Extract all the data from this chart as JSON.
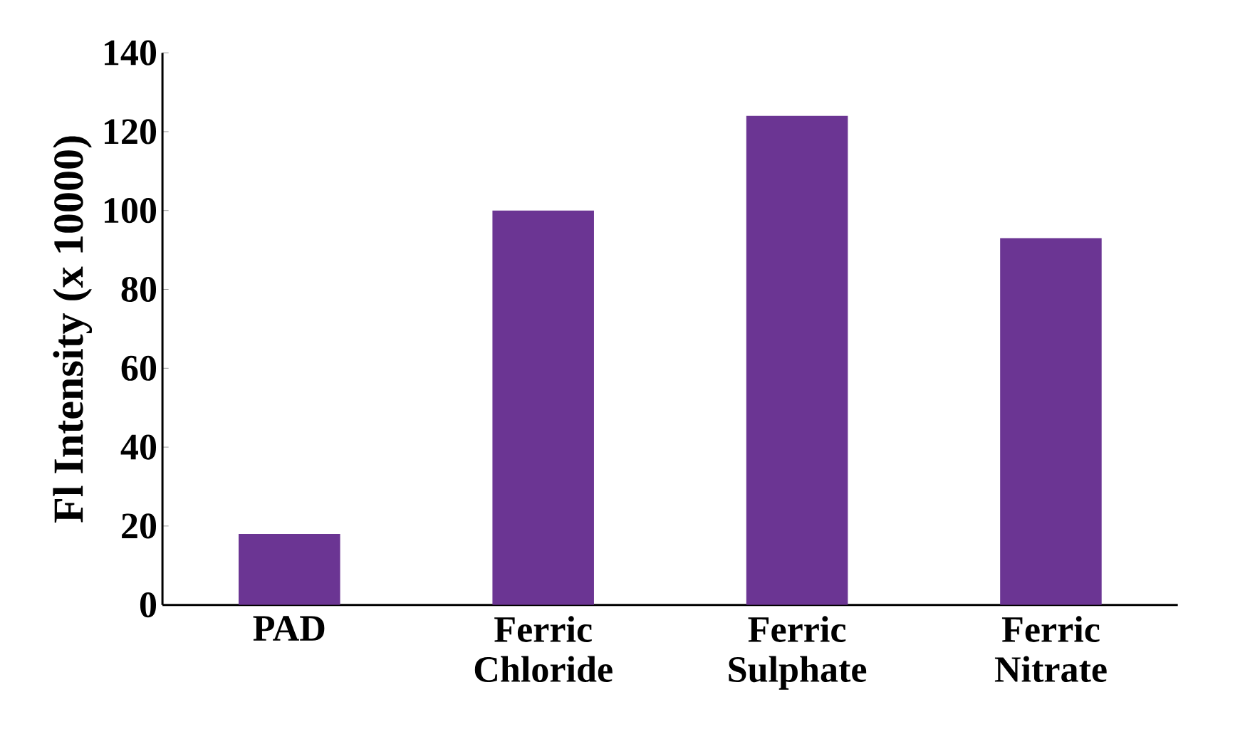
{
  "chart_data": {
    "type": "bar",
    "ylabel": "Fl Intensity (x 10000)",
    "categories": [
      "PAD",
      "Ferric Chloride",
      "Ferric Sulphate",
      "Ferric Nitrate"
    ],
    "values": [
      18,
      100,
      124,
      93
    ],
    "color": "#6b3593",
    "ylim": [
      0,
      140
    ],
    "yticks": [
      0,
      20,
      40,
      60,
      80,
      100,
      120,
      140
    ]
  }
}
